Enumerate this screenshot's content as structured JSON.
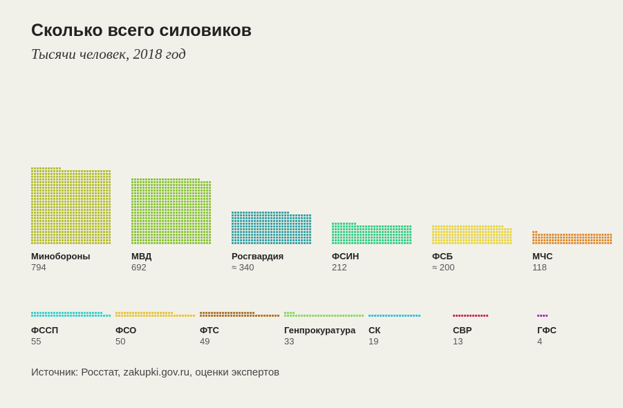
{
  "title": "Сколько всего силовиков",
  "subtitle": "Тысячи человек, 2018 год",
  "source": "Источник: Росстат, zakupki.gov.ru, оценки экспертов",
  "chart_data": {
    "type": "bar",
    "unit": "thousand people",
    "year": 2018,
    "items": [
      {
        "name": "Минобороны",
        "value_label": "794",
        "value": 794,
        "color": "#b8bf3a"
      },
      {
        "name": "МВД",
        "value_label": "692",
        "value": 692,
        "color": "#8fc53f"
      },
      {
        "name": "Росгвардия",
        "value_label": "≈ 340",
        "value": 340,
        "color": "#3fa3a6"
      },
      {
        "name": "ФСИН",
        "value_label": "212",
        "value": 212,
        "color": "#3ecf8a"
      },
      {
        "name": "ФСБ",
        "value_label": "≈ 200",
        "value": 200,
        "color": "#e9d64a"
      },
      {
        "name": "МЧС",
        "value_label": "118",
        "value": 118,
        "color": "#e0913a"
      },
      {
        "name": "ФССП",
        "value_label": "55",
        "value": 55,
        "color": "#3ed2cf"
      },
      {
        "name": "ФСО",
        "value_label": "50",
        "value": 50,
        "color": "#e9c63c"
      },
      {
        "name": "ФТС",
        "value_label": "49",
        "value": 49,
        "color": "#b0772e"
      },
      {
        "name": "Генпрокуратура",
        "value_label": "33",
        "value": 33,
        "color": "#8fd867"
      },
      {
        "name": "СК",
        "value_label": "19",
        "value": 19,
        "color": "#3fbfd6"
      },
      {
        "name": "СВР",
        "value_label": "13",
        "value": 13,
        "color": "#c63256"
      },
      {
        "name": "ГФС",
        "value_label": "4",
        "value": 4,
        "color": "#a637c4"
      }
    ]
  }
}
